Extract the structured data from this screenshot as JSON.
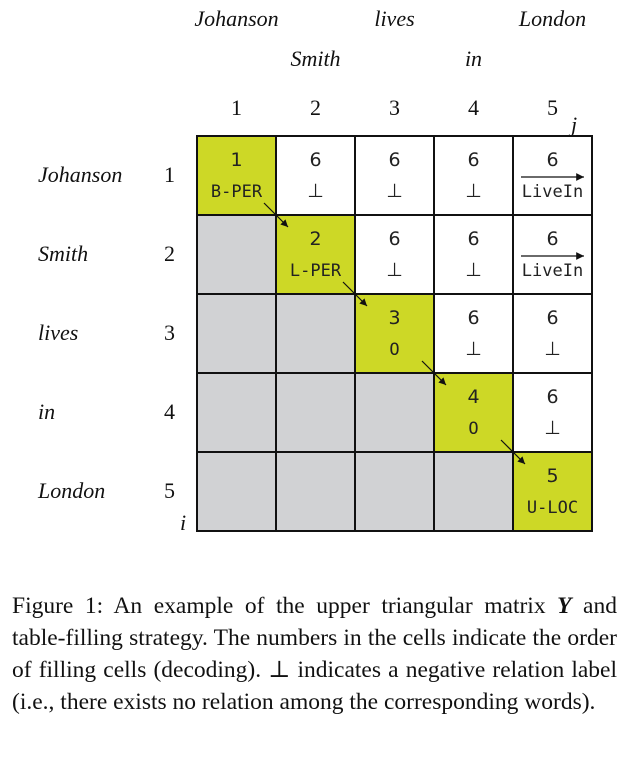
{
  "top_words": [
    {
      "text": "Johanson",
      "col": 1,
      "row": 0
    },
    {
      "text": "Smith",
      "col": 2,
      "row": 1
    },
    {
      "text": "lives",
      "col": 3,
      "row": 0
    },
    {
      "text": "in",
      "col": 4,
      "row": 1
    },
    {
      "text": "London",
      "col": 5,
      "row": 0
    }
  ],
  "left_words": [
    "Johanson",
    "Smith",
    "lives",
    "in",
    "London"
  ],
  "col_indices": [
    "1",
    "2",
    "3",
    "4",
    "5"
  ],
  "row_indices": [
    "1",
    "2",
    "3",
    "4",
    "5"
  ],
  "col_axis_label": "j",
  "row_axis_label": "i",
  "cells": [
    {
      "r": 1,
      "c": 1,
      "order": "1",
      "label": "B-PER",
      "type": "diag"
    },
    {
      "r": 1,
      "c": 2,
      "order": "6",
      "label": "⊥",
      "type": "upper"
    },
    {
      "r": 1,
      "c": 3,
      "order": "6",
      "label": "⊥",
      "type": "upper"
    },
    {
      "r": 1,
      "c": 4,
      "order": "6",
      "label": "⊥",
      "type": "upper"
    },
    {
      "r": 1,
      "c": 5,
      "order": "6",
      "label": "LiveIn",
      "type": "upper",
      "arrow": true
    },
    {
      "r": 2,
      "c": 2,
      "order": "2",
      "label": "L-PER",
      "type": "diag"
    },
    {
      "r": 2,
      "c": 3,
      "order": "6",
      "label": "⊥",
      "type": "upper"
    },
    {
      "r": 2,
      "c": 4,
      "order": "6",
      "label": "⊥",
      "type": "upper"
    },
    {
      "r": 2,
      "c": 5,
      "order": "6",
      "label": "LiveIn",
      "type": "upper",
      "arrow": true
    },
    {
      "r": 3,
      "c": 3,
      "order": "3",
      "label": "O",
      "type": "diag"
    },
    {
      "r": 3,
      "c": 4,
      "order": "6",
      "label": "⊥",
      "type": "upper"
    },
    {
      "r": 3,
      "c": 5,
      "order": "6",
      "label": "⊥",
      "type": "upper"
    },
    {
      "r": 4,
      "c": 4,
      "order": "4",
      "label": "O",
      "type": "diag"
    },
    {
      "r": 4,
      "c": 5,
      "order": "6",
      "label": "⊥",
      "type": "upper"
    },
    {
      "r": 5,
      "c": 5,
      "order": "5",
      "label": "U-LOC",
      "type": "diag"
    }
  ],
  "colors": {
    "diag": "#cdd826",
    "lower": "#d1d2d4",
    "upper": "#ffffff",
    "border": "#111111"
  },
  "caption": {
    "prefix": "Figure 1: An example of the upper triangular matrix ",
    "matrix_symbol": "Y",
    "rest": " and table-filling strategy. The numbers in the cells indicate the order of filling cells (decoding). ⊥ indicates a negative relation label (i.e., there exists no relation among the corresponding words)."
  }
}
